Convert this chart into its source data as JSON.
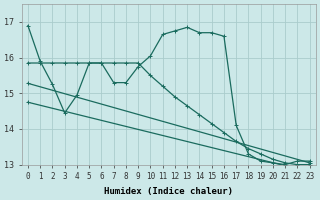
{
  "xlabel": "Humidex (Indice chaleur)",
  "bg_color": "#cce8e8",
  "grid_color": "#aacccc",
  "line_color": "#1a6b5e",
  "xlim": [
    -0.5,
    23.5
  ],
  "ylim": [
    13.0,
    17.5
  ],
  "yticks": [
    13,
    14,
    15,
    16,
    17
  ],
  "xticks": [
    0,
    1,
    2,
    3,
    4,
    5,
    6,
    7,
    8,
    9,
    10,
    11,
    12,
    13,
    14,
    15,
    16,
    17,
    18,
    19,
    20,
    21,
    22,
    23
  ],
  "line1_x": [
    0,
    1,
    2,
    3,
    4,
    5,
    6,
    7,
    8,
    9,
    10,
    11,
    12,
    13,
    14,
    15,
    16,
    17,
    18,
    19,
    20,
    21,
    22,
    23
  ],
  "line1_y": [
    16.9,
    15.9,
    15.25,
    14.45,
    14.95,
    15.85,
    15.85,
    15.3,
    15.3,
    15.75,
    16.05,
    16.65,
    16.75,
    16.85,
    16.7,
    16.7,
    16.6,
    14.1,
    13.3,
    13.1,
    13.05,
    13.0,
    13.1,
    13.1
  ],
  "line2_x": [
    0,
    1,
    2,
    3,
    4,
    5,
    6,
    7,
    8,
    9,
    10,
    11,
    12,
    13,
    14,
    15,
    16,
    17,
    18,
    19,
    20,
    21,
    22,
    23
  ],
  "line2_y": [
    15.85,
    15.85,
    15.85,
    15.85,
    15.85,
    15.85,
    15.85,
    15.85,
    15.85,
    15.85,
    15.5,
    15.2,
    14.9,
    14.65,
    14.4,
    14.15,
    13.9,
    13.65,
    13.45,
    13.3,
    13.15,
    13.05,
    13.0,
    13.0
  ],
  "line3_x": [
    0,
    23
  ],
  "line3_y": [
    15.28,
    13.05
  ],
  "line4_x": [
    0,
    23
  ],
  "line4_y": [
    14.75,
    12.8
  ],
  "xlabel_fontsize": 6.5,
  "tick_fontsize": 5.5,
  "ytick_fontsize": 6.0,
  "lw": 0.9,
  "ms": 2.5
}
